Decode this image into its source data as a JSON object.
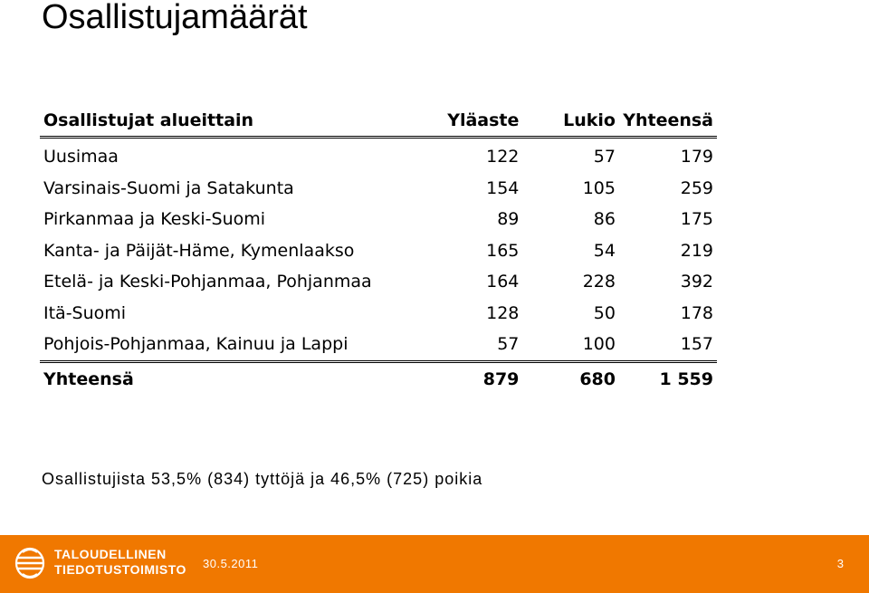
{
  "title": "Osallistujamäärät",
  "table": {
    "headers": [
      "Osallistujat alueittain",
      "Yläaste",
      "Lukio",
      "Yhteensä"
    ],
    "rows": [
      [
        "Uusimaa",
        "122",
        "57",
        "179"
      ],
      [
        "Varsinais-Suomi ja Satakunta",
        "154",
        "105",
        "259"
      ],
      [
        "Pirkanmaa ja Keski-Suomi",
        "89",
        "86",
        "175"
      ],
      [
        "Kanta- ja Päijät-Häme, Kymenlaakso",
        "165",
        "54",
        "219"
      ],
      [
        "Etelä- ja Keski-Pohjanmaa, Pohjanmaa",
        "164",
        "228",
        "392"
      ],
      [
        "Itä-Suomi",
        "128",
        "50",
        "178"
      ],
      [
        "Pohjois-Pohjanmaa, Kainuu ja Lappi",
        "57",
        "100",
        "157"
      ]
    ],
    "total": [
      "Yhteensä",
      "879",
      "680",
      "1 559"
    ]
  },
  "caption": "Osallistujista 53,5% (834) tyttöjä ja 46,5% (725) poikia",
  "footer": {
    "logo_line1": "TALOUDELLINEN",
    "logo_line2": "TIEDOTUSTOIMISTO",
    "date": "30.5.2011",
    "page_number": "3",
    "bar_color": "#f07800"
  }
}
